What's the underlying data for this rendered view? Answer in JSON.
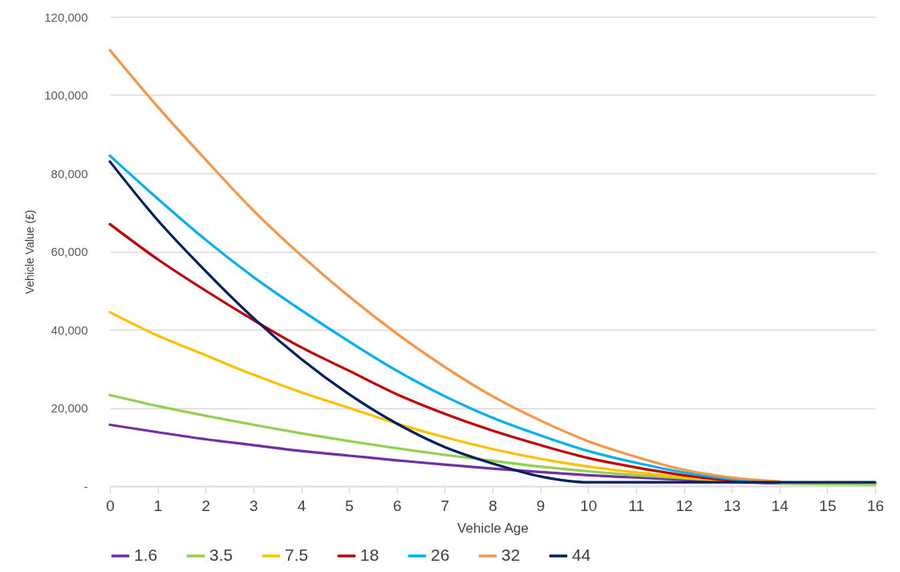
{
  "chart_data": {
    "type": "line",
    "xlabel": "Vehicle Age",
    "ylabel": "Vehicle Value (£)",
    "x": [
      0,
      1,
      2,
      3,
      4,
      5,
      6,
      7,
      8,
      9,
      10,
      11,
      12,
      13,
      14,
      15,
      16
    ],
    "xlim": [
      0,
      16
    ],
    "xticks": [
      0,
      1,
      2,
      3,
      4,
      5,
      6,
      7,
      8,
      9,
      10,
      11,
      12,
      13,
      14,
      15,
      16
    ],
    "ylim": [
      0,
      120000
    ],
    "yticks": [
      {
        "value": 0,
        "label": "-"
      },
      {
        "value": 20000,
        "label": "20,000"
      },
      {
        "value": 40000,
        "label": "40,000"
      },
      {
        "value": 60000,
        "label": "60,000"
      },
      {
        "value": 80000,
        "label": "80,000"
      },
      {
        "value": 100000,
        "label": "100,000"
      },
      {
        "value": 120000,
        "label": "120,000"
      }
    ],
    "grid": "y",
    "legend": "bottom",
    "line_style": "solid",
    "marker": "none",
    "series": [
      {
        "name": "1.6",
        "color": "#7030a0",
        "values": [
          15700,
          13800,
          12000,
          10500,
          9000,
          7800,
          6600,
          5500,
          4500,
          3600,
          2800,
          2200,
          1600,
          1100,
          700,
          600,
          500
        ]
      },
      {
        "name": "3.5",
        "color": "#92d050",
        "values": [
          23300,
          20500,
          18000,
          15700,
          13500,
          11500,
          9700,
          8000,
          6500,
          5000,
          3800,
          2800,
          2000,
          1300,
          800,
          500,
          500
        ]
      },
      {
        "name": "7.5",
        "color": "#ffc000",
        "values": [
          44500,
          38500,
          33500,
          28500,
          24000,
          20000,
          16000,
          12500,
          9500,
          7000,
          5000,
          3500,
          2200,
          1300,
          1000,
          null,
          null
        ]
      },
      {
        "name": "18",
        "color": "#c00000",
        "values": [
          67000,
          58000,
          50000,
          42500,
          35500,
          29500,
          23500,
          18500,
          14200,
          10500,
          7200,
          4800,
          2800,
          1500,
          1000,
          null,
          null
        ]
      },
      {
        "name": "26",
        "color": "#00b0f0",
        "values": [
          84500,
          73500,
          63000,
          53500,
          45000,
          37000,
          29500,
          23000,
          17500,
          13000,
          9000,
          6000,
          3500,
          1800,
          1000,
          null,
          null
        ]
      },
      {
        "name": "32",
        "color": "#f79646",
        "values": [
          111500,
          97000,
          83500,
          70500,
          59000,
          48500,
          39000,
          30500,
          23000,
          16800,
          11500,
          7500,
          4200,
          2200,
          1200,
          null,
          null
        ]
      },
      {
        "name": "44",
        "color": "#002060",
        "values": [
          83000,
          68000,
          55000,
          43000,
          32500,
          23500,
          16000,
          10000,
          5800,
          2500,
          1000,
          1000,
          1000,
          1000,
          1000,
          1000,
          1000
        ]
      }
    ]
  }
}
